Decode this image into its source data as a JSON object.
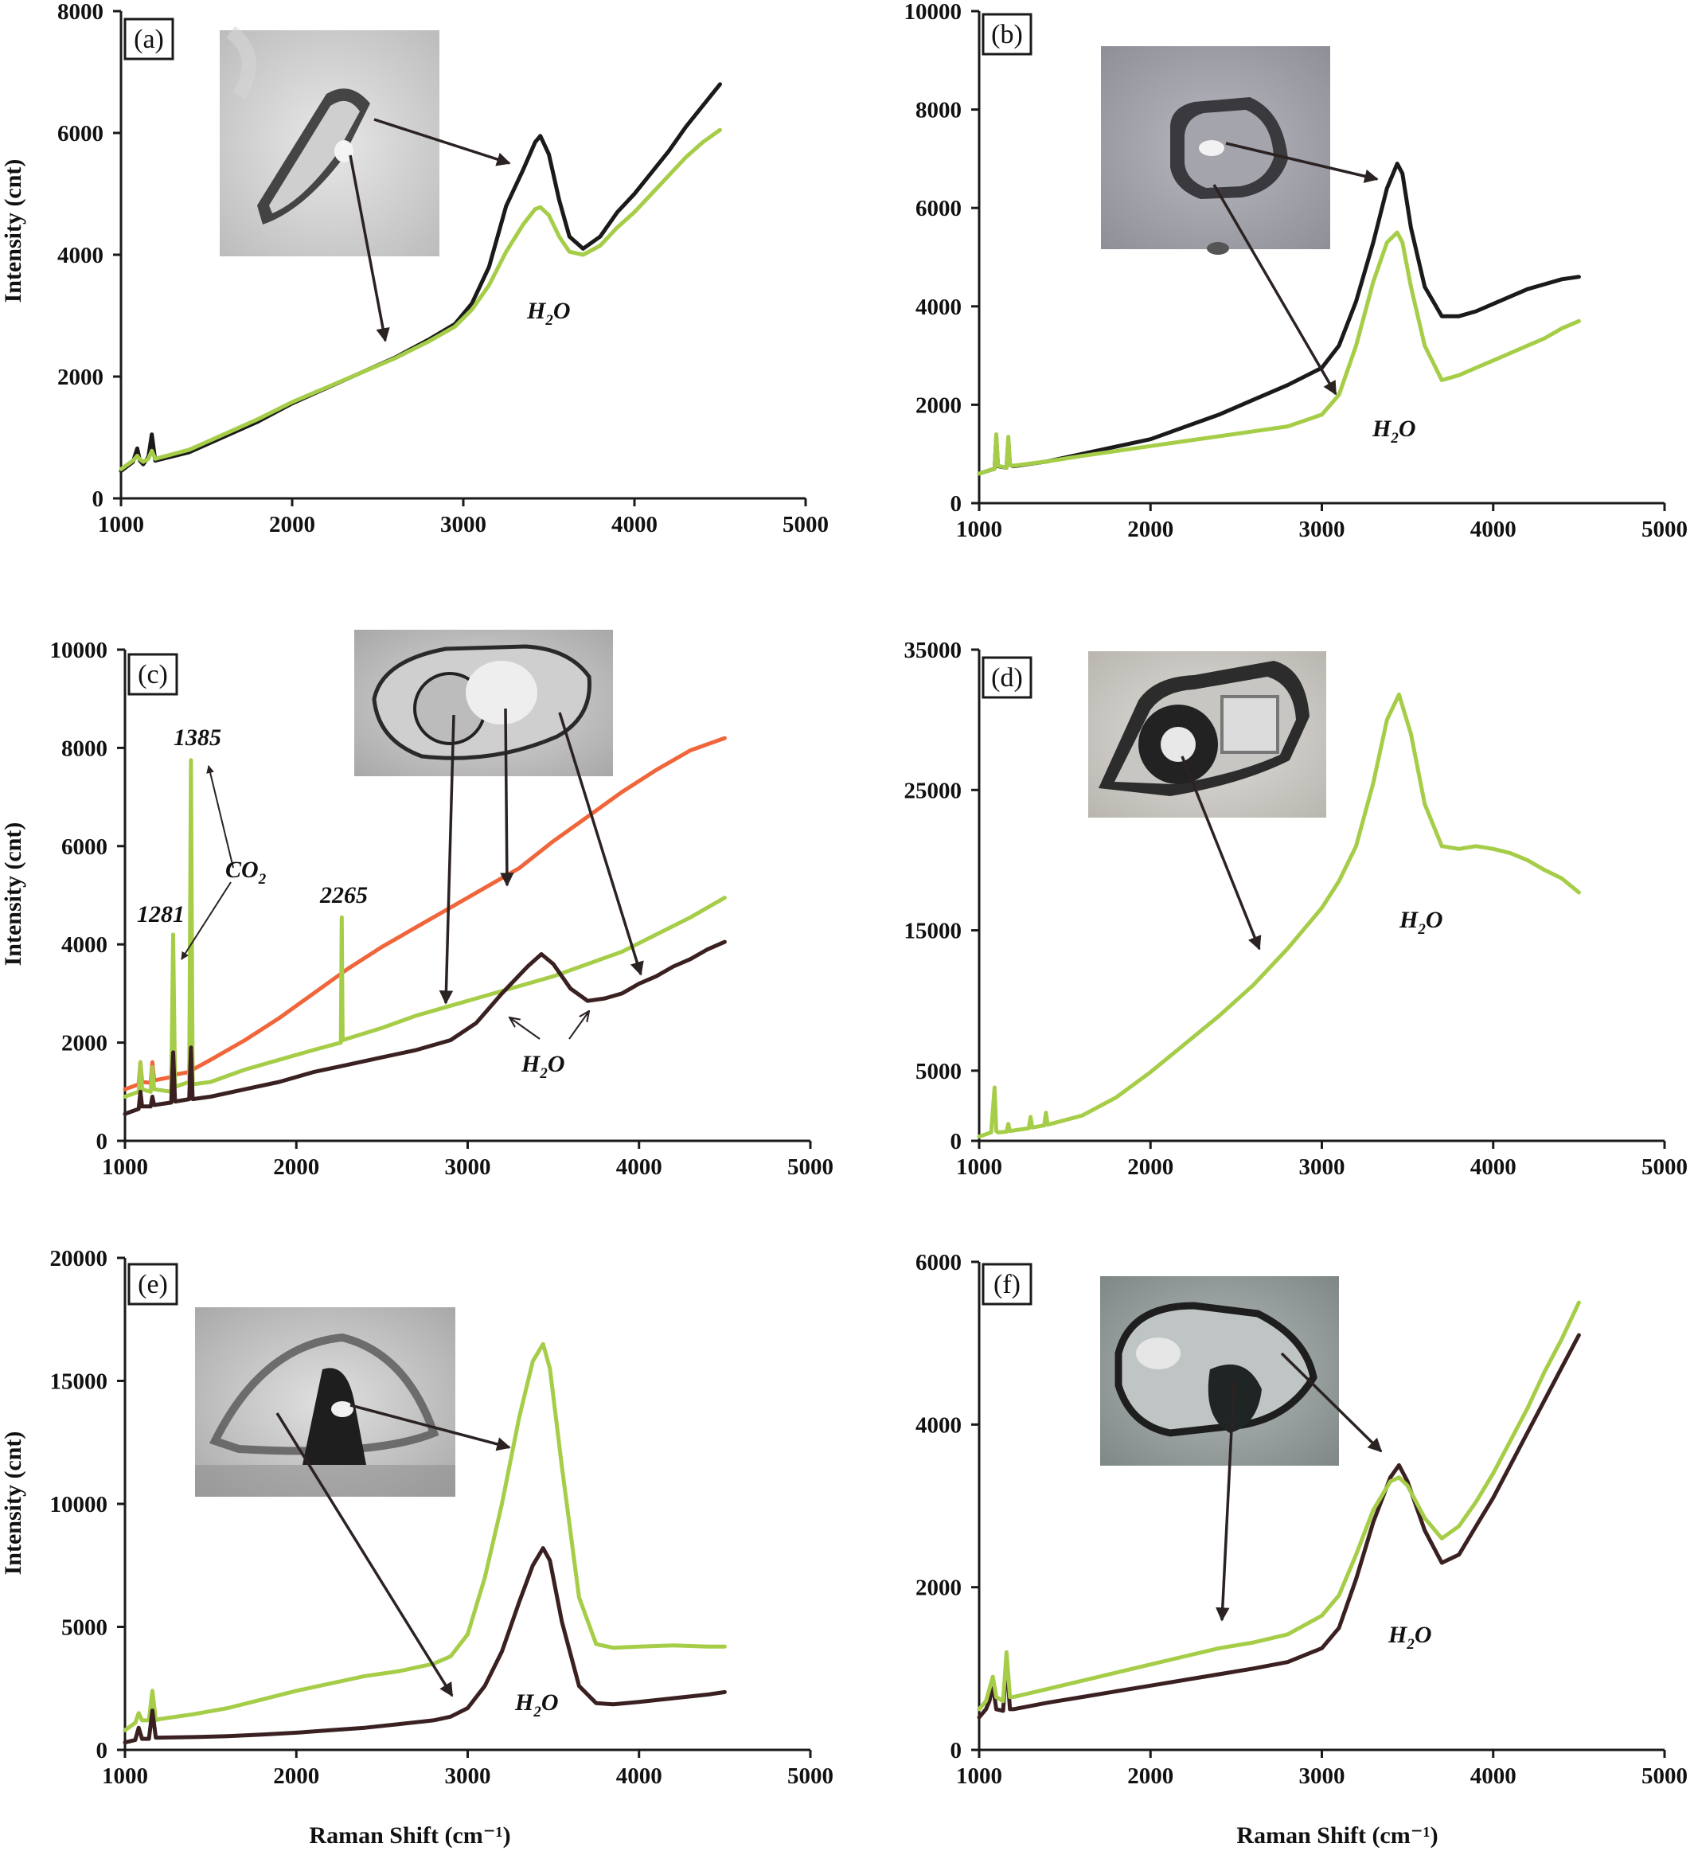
{
  "figure": {
    "x_axis_title": "Raman Shift (cm⁻¹)",
    "y_axis_title": "Intensity (cnt)"
  },
  "colors": {
    "black": "#1a1a1a",
    "green": "#a6cd48",
    "orange": "#f0653a",
    "darkred": "#3a2020"
  },
  "chart_data": [
    {
      "panel": "(a)",
      "type": "line",
      "xlim": [
        1000,
        5000
      ],
      "ylim": [
        0,
        8000
      ],
      "xticks": [
        1000,
        2000,
        3000,
        4000,
        5000
      ],
      "yticks": [
        0,
        2000,
        4000,
        6000,
        8000
      ],
      "annotations": [
        {
          "text": "H",
          "sub": "2",
          "tail": "O"
        }
      ],
      "series": [
        {
          "color": "black",
          "x": [
            1000,
            1070,
            1095,
            1110,
            1130,
            1160,
            1180,
            1200,
            1400,
            1600,
            1800,
            2000,
            2200,
            2400,
            2600,
            2800,
            2950,
            3050,
            3150,
            3250,
            3350,
            3420,
            3450,
            3500,
            3560,
            3620,
            3700,
            3800,
            3900,
            4000,
            4100,
            4200,
            4300,
            4400,
            4500
          ],
          "y": [
            450,
            600,
            820,
            620,
            560,
            680,
            1050,
            620,
            760,
            1010,
            1260,
            1560,
            1810,
            2060,
            2310,
            2610,
            2860,
            3200,
            3800,
            4800,
            5400,
            5850,
            5950,
            5650,
            4900,
            4300,
            4100,
            4300,
            4700,
            5000,
            5350,
            5700,
            6100,
            6450,
            6800
          ]
        },
        {
          "color": "green",
          "x": [
            1000,
            1070,
            1095,
            1110,
            1130,
            1160,
            1180,
            1200,
            1400,
            1600,
            1800,
            2000,
            2200,
            2400,
            2600,
            2800,
            2950,
            3050,
            3150,
            3250,
            3350,
            3420,
            3450,
            3500,
            3560,
            3620,
            3700,
            3800,
            3900,
            4000,
            4100,
            4200,
            4300,
            4400,
            4500
          ],
          "y": [
            480,
            620,
            700,
            640,
            600,
            650,
            780,
            650,
            800,
            1050,
            1300,
            1580,
            1820,
            2060,
            2300,
            2580,
            2820,
            3100,
            3500,
            4050,
            4500,
            4750,
            4780,
            4650,
            4300,
            4050,
            4000,
            4150,
            4450,
            4700,
            5000,
            5300,
            5600,
            5850,
            6050
          ]
        }
      ]
    },
    {
      "panel": "(b)",
      "type": "line",
      "xlim": [
        1000,
        5000
      ],
      "ylim": [
        0,
        10000
      ],
      "xticks": [
        1000,
        2000,
        3000,
        4000,
        5000
      ],
      "yticks": [
        0,
        2000,
        4000,
        6000,
        8000,
        10000
      ],
      "annotations": [
        {
          "text": "H",
          "sub": "2",
          "tail": "O"
        }
      ],
      "series": [
        {
          "color": "black",
          "x": [
            1000,
            1090,
            1100,
            1110,
            1160,
            1170,
            1180,
            1200,
            1400,
            1600,
            1800,
            2000,
            2200,
            2400,
            2600,
            2800,
            3000,
            3100,
            3200,
            3300,
            3380,
            3440,
            3470,
            3520,
            3600,
            3700,
            3800,
            3900,
            4000,
            4100,
            4200,
            4300,
            4400,
            4500
          ],
          "y": [
            600,
            700,
            1350,
            750,
            720,
            1300,
            780,
            750,
            850,
            1000,
            1150,
            1300,
            1550,
            1800,
            2100,
            2400,
            2750,
            3200,
            4100,
            5300,
            6400,
            6900,
            6700,
            5600,
            4400,
            3800,
            3800,
            3900,
            4050,
            4200,
            4350,
            4450,
            4550,
            4600
          ]
        },
        {
          "color": "green",
          "x": [
            1000,
            1090,
            1100,
            1110,
            1160,
            1170,
            1180,
            1200,
            1400,
            1600,
            1800,
            2000,
            2200,
            2400,
            2600,
            2800,
            3000,
            3100,
            3200,
            3300,
            3380,
            3440,
            3470,
            3520,
            3600,
            3700,
            3800,
            3900,
            4000,
            4100,
            4200,
            4300,
            4400,
            4500
          ],
          "y": [
            600,
            700,
            1400,
            760,
            720,
            1350,
            780,
            760,
            850,
            960,
            1060,
            1160,
            1260,
            1360,
            1460,
            1560,
            1800,
            2200,
            3200,
            4500,
            5300,
            5500,
            5300,
            4400,
            3200,
            2500,
            2600,
            2750,
            2900,
            3050,
            3200,
            3350,
            3550,
            3700
          ]
        }
      ]
    },
    {
      "panel": "(c)",
      "type": "line",
      "xlim": [
        1000,
        5000
      ],
      "ylim": [
        0,
        10000
      ],
      "xticks": [
        1000,
        2000,
        3000,
        4000,
        5000
      ],
      "yticks": [
        0,
        2000,
        4000,
        6000,
        8000,
        10000
      ],
      "peak_labels": [
        "1385",
        "1281",
        "2265"
      ],
      "co2_label": {
        "text": "CO",
        "sub": "2"
      },
      "annotations": [
        {
          "text": "H",
          "sub": "2",
          "tail": "O"
        }
      ],
      "series": [
        {
          "color": "orange",
          "x": [
            1000,
            1080,
            1090,
            1100,
            1150,
            1160,
            1170,
            1270,
            1281,
            1292,
            1375,
            1385,
            1395,
            1500,
            1700,
            1900,
            2100,
            2300,
            2500,
            2700,
            2900,
            3100,
            3300,
            3500,
            3700,
            3900,
            4100,
            4300,
            4500
          ],
          "y": [
            1050,
            1150,
            1600,
            1200,
            1180,
            1600,
            1230,
            1300,
            2800,
            1350,
            1400,
            2600,
            1450,
            1650,
            2050,
            2500,
            3000,
            3500,
            3950,
            4350,
            4750,
            5150,
            5550,
            6100,
            6600,
            7100,
            7550,
            7950,
            8200
          ]
        },
        {
          "color": "green",
          "x": [
            1000,
            1080,
            1090,
            1100,
            1150,
            1160,
            1170,
            1270,
            1281,
            1292,
            1375,
            1385,
            1395,
            1500,
            1700,
            1900,
            2100,
            2260,
            2265,
            2270,
            2500,
            2700,
            2900,
            3100,
            3300,
            3500,
            3700,
            3900,
            4100,
            4300,
            4500
          ],
          "y": [
            900,
            1000,
            1600,
            1050,
            1000,
            1500,
            1050,
            1000,
            4200,
            1100,
            1200,
            7750,
            1150,
            1200,
            1450,
            1650,
            1850,
            2000,
            4550,
            2050,
            2300,
            2550,
            2750,
            2950,
            3150,
            3350,
            3600,
            3850,
            4200,
            4550,
            4950
          ]
        },
        {
          "color": "darkred",
          "x": [
            1000,
            1080,
            1090,
            1100,
            1150,
            1160,
            1170,
            1270,
            1281,
            1292,
            1375,
            1385,
            1395,
            1500,
            1700,
            1900,
            2100,
            2300,
            2500,
            2700,
            2900,
            3050,
            3200,
            3350,
            3430,
            3500,
            3600,
            3700,
            3800,
            3900,
            4000,
            4100,
            4200,
            4300,
            4400,
            4500
          ],
          "y": [
            550,
            650,
            1000,
            700,
            700,
            900,
            730,
            780,
            1800,
            800,
            850,
            1900,
            850,
            900,
            1050,
            1200,
            1400,
            1550,
            1700,
            1850,
            2050,
            2400,
            3000,
            3550,
            3800,
            3600,
            3100,
            2850,
            2900,
            3000,
            3200,
            3350,
            3550,
            3700,
            3900,
            4050
          ]
        }
      ]
    },
    {
      "panel": "(d)",
      "type": "line",
      "xlim": [
        1000,
        5000
      ],
      "ylim": [
        0,
        35000
      ],
      "xticks": [
        1000,
        2000,
        3000,
        4000,
        5000
      ],
      "yticks": [
        0,
        5000,
        15000,
        25000,
        35000
      ],
      "annotations": [
        {
          "text": "H",
          "sub": "2",
          "tail": "O"
        }
      ],
      "series": [
        {
          "color": "green",
          "x": [
            1000,
            1070,
            1090,
            1100,
            1110,
            1160,
            1170,
            1180,
            1290,
            1300,
            1310,
            1380,
            1390,
            1400,
            1600,
            1800,
            2000,
            2200,
            2400,
            2600,
            2800,
            3000,
            3100,
            3200,
            3300,
            3380,
            3450,
            3520,
            3600,
            3700,
            3800,
            3900,
            4000,
            4100,
            4200,
            4300,
            4400,
            4500
          ],
          "y": [
            300,
            600,
            3800,
            700,
            600,
            650,
            1200,
            700,
            900,
            1700,
            950,
            1100,
            2000,
            1150,
            1800,
            3100,
            4900,
            6900,
            8900,
            11100,
            13700,
            16600,
            18500,
            21000,
            25500,
            30000,
            31800,
            29000,
            24000,
            21000,
            20800,
            21000,
            20800,
            20500,
            20000,
            19300,
            18700,
            17700
          ]
        }
      ]
    },
    {
      "panel": "(e)",
      "type": "line",
      "xlim": [
        1000,
        5000
      ],
      "ylim": [
        0,
        20000
      ],
      "xticks": [
        1000,
        2000,
        3000,
        4000,
        5000
      ],
      "yticks": [
        0,
        5000,
        10000,
        15000,
        20000
      ],
      "annotations": [
        {
          "text": "H",
          "sub": "2",
          "tail": "O"
        }
      ],
      "series": [
        {
          "color": "green",
          "x": [
            1000,
            1060,
            1080,
            1100,
            1140,
            1160,
            1180,
            1200,
            1400,
            1600,
            1800,
            2000,
            2200,
            2400,
            2600,
            2800,
            2900,
            3000,
            3100,
            3200,
            3300,
            3380,
            3440,
            3480,
            3550,
            3650,
            3750,
            3850,
            4000,
            4200,
            4400,
            4500
          ],
          "y": [
            800,
            1100,
            1500,
            1200,
            1200,
            2400,
            1200,
            1250,
            1450,
            1700,
            2050,
            2400,
            2700,
            3000,
            3200,
            3500,
            3800,
            4700,
            7000,
            10000,
            13500,
            15800,
            16500,
            15500,
            11500,
            6200,
            4300,
            4150,
            4200,
            4250,
            4200,
            4200
          ]
        },
        {
          "color": "darkred",
          "x": [
            1000,
            1060,
            1080,
            1100,
            1140,
            1160,
            1180,
            1200,
            1400,
            1600,
            1800,
            2000,
            2200,
            2400,
            2600,
            2800,
            2900,
            3000,
            3100,
            3200,
            3300,
            3380,
            3440,
            3480,
            3550,
            3650,
            3750,
            3850,
            4000,
            4200,
            4400,
            4500
          ],
          "y": [
            300,
            400,
            900,
            450,
            450,
            1600,
            500,
            500,
            520,
            560,
            620,
            700,
            800,
            900,
            1050,
            1200,
            1350,
            1700,
            2600,
            4000,
            6000,
            7500,
            8200,
            7700,
            5200,
            2600,
            1900,
            1850,
            1950,
            2100,
            2250,
            2350
          ]
        }
      ]
    },
    {
      "panel": "(f)",
      "type": "line",
      "xlim": [
        1000,
        5000
      ],
      "ylim": [
        0,
        6000
      ],
      "xticks": [
        1000,
        2000,
        3000,
        4000,
        5000
      ],
      "yticks": [
        0,
        2000,
        4000,
        6000
      ],
      "annotations": [
        {
          "text": "H",
          "sub": "2",
          "tail": "O"
        }
      ],
      "series": [
        {
          "color": "darkred",
          "x": [
            1000,
            1040,
            1060,
            1080,
            1100,
            1140,
            1160,
            1180,
            1200,
            1400,
            1600,
            1800,
            2000,
            2200,
            2400,
            2600,
            2800,
            3000,
            3100,
            3200,
            3300,
            3400,
            3450,
            3500,
            3600,
            3700,
            3800,
            3900,
            4000,
            4100,
            4200,
            4300,
            4400,
            4500
          ],
          "y": [
            400,
            500,
            600,
            800,
            500,
            480,
            1100,
            500,
            500,
            580,
            650,
            720,
            790,
            860,
            930,
            1000,
            1080,
            1250,
            1500,
            2100,
            2800,
            3350,
            3500,
            3300,
            2700,
            2300,
            2400,
            2750,
            3100,
            3500,
            3900,
            4300,
            4700,
            5100
          ]
        },
        {
          "color": "green",
          "x": [
            1000,
            1040,
            1060,
            1080,
            1100,
            1140,
            1160,
            1180,
            1200,
            1400,
            1600,
            1800,
            2000,
            2200,
            2400,
            2600,
            2800,
            3000,
            3100,
            3200,
            3300,
            3400,
            3450,
            3500,
            3600,
            3700,
            3800,
            3900,
            4000,
            4100,
            4200,
            4300,
            4400,
            4500
          ],
          "y": [
            500,
            600,
            750,
            900,
            650,
            600,
            1200,
            650,
            650,
            750,
            850,
            950,
            1050,
            1150,
            1250,
            1320,
            1420,
            1650,
            1900,
            2400,
            2950,
            3300,
            3350,
            3250,
            2850,
            2600,
            2750,
            3050,
            3400,
            3800,
            4200,
            4650,
            5050,
            5500
          ]
        }
      ]
    }
  ]
}
